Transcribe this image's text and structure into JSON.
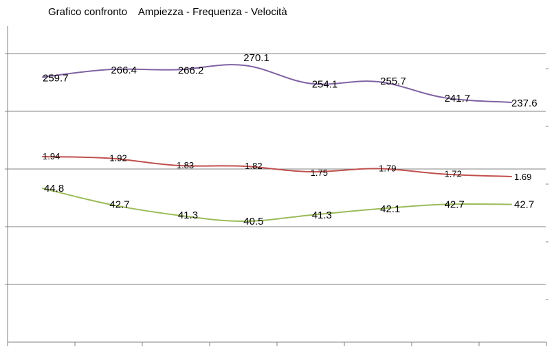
{
  "chart_data": {
    "type": "line",
    "title": "Grafico confronto    Ampiezza - Frequenza - Velocità",
    "categories": [
      "",
      "",
      "",
      "",
      "",
      "",
      "",
      ""
    ],
    "grid": true,
    "legend": "none",
    "series": [
      {
        "key": "ampiezza",
        "color": "#7f62a3",
        "values": [
          259.7,
          266.4,
          266.2,
          270.1,
          254.1,
          255.7,
          241.7,
          237.6
        ],
        "labels": [
          "259.7",
          "266.4",
          "266.2",
          "270.1",
          "254.1",
          "255.7",
          "241.7",
          "237.6"
        ]
      },
      {
        "key": "frequenza",
        "color": "#c0504d",
        "values": [
          1.94,
          1.92,
          1.83,
          1.82,
          1.75,
          1.79,
          1.72,
          1.69
        ],
        "labels": [
          "1.94",
          "1.92",
          "1.83",
          "1.82",
          "1.75",
          "1.79",
          "1.72",
          "1.69"
        ]
      },
      {
        "key": "velocita",
        "color": "#9bbb59",
        "values": [
          44.8,
          42.7,
          41.3,
          40.5,
          41.3,
          42.1,
          42.7,
          42.7
        ],
        "labels": [
          "44.8",
          "42.7",
          "41.3",
          "40.5",
          "41.3",
          "42.1",
          "42.7",
          "42.7"
        ]
      }
    ]
  }
}
